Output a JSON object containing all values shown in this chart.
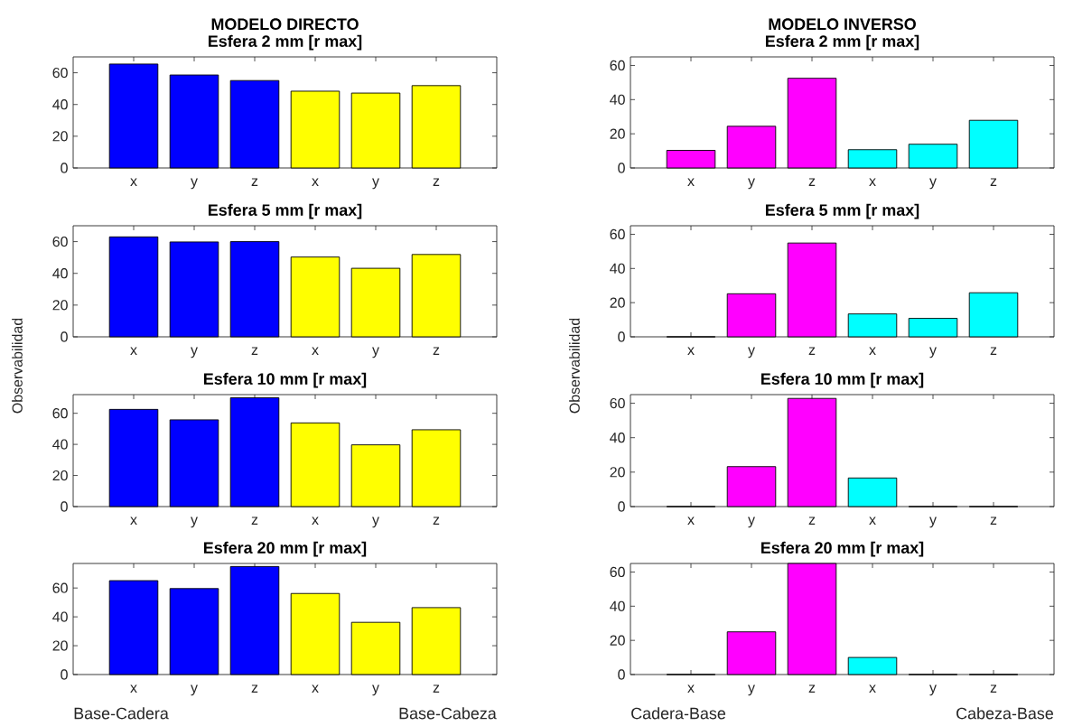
{
  "chart_data": [
    {
      "type": "bar",
      "title": "MODELO DIRECTO",
      "subtitle": "Esfera 2 mm [r max]",
      "categories": [
        "x",
        "y",
        "z",
        "x",
        "y",
        "z"
      ],
      "values": [
        65.5,
        58.6,
        55.1,
        48.4,
        47.2,
        51.9
      ],
      "colors": [
        "#0000ff",
        "#0000ff",
        "#0000ff",
        "#ffff00",
        "#ffff00",
        "#ffff00"
      ],
      "ylim": [
        0,
        70
      ],
      "yticks": [
        0,
        20,
        40,
        60
      ]
    },
    {
      "type": "bar",
      "title": "Esfera 5 mm [r max]",
      "ylabel": "Observabilidad",
      "categories": [
        "x",
        "y",
        "z",
        "x",
        "y",
        "z"
      ],
      "values": [
        63.0,
        59.8,
        60.0,
        50.3,
        43.2,
        51.9
      ],
      "colors": [
        "#0000ff",
        "#0000ff",
        "#0000ff",
        "#ffff00",
        "#ffff00",
        "#ffff00"
      ],
      "ylim": [
        0,
        70
      ],
      "yticks": [
        0,
        20,
        40,
        60
      ]
    },
    {
      "type": "bar",
      "title": "Esfera 10 mm [r max]",
      "categories": [
        "x",
        "y",
        "z",
        "x",
        "y",
        "z"
      ],
      "values": [
        62.5,
        55.8,
        70.0,
        53.8,
        39.7,
        49.4
      ],
      "colors": [
        "#0000ff",
        "#0000ff",
        "#0000ff",
        "#ffff00",
        "#ffff00",
        "#ffff00"
      ],
      "ylim": [
        0,
        72
      ],
      "yticks": [
        0,
        20,
        40,
        60
      ]
    },
    {
      "type": "bar",
      "title": "Esfera 20 mm [r max]",
      "categories": [
        "x",
        "y",
        "z",
        "x",
        "y",
        "z"
      ],
      "values": [
        65.1,
        59.6,
        74.9,
        56.2,
        36.2,
        46.4
      ],
      "colors": [
        "#0000ff",
        "#0000ff",
        "#0000ff",
        "#ffff00",
        "#ffff00",
        "#ffff00"
      ],
      "ylim": [
        0,
        77
      ],
      "yticks": [
        0,
        20,
        40,
        60
      ],
      "annotations": [
        "Base-Cadera",
        "Base-Cabeza"
      ]
    },
    {
      "type": "bar",
      "title": "MODELO INVERSO",
      "subtitle": "Esfera 2 mm [r max]",
      "categories": [
        "x",
        "y",
        "z",
        "x",
        "y",
        "z"
      ],
      "values": [
        10.3,
        24.4,
        52.5,
        10.7,
        13.9,
        27.9
      ],
      "colors": [
        "#ff00ff",
        "#ff00ff",
        "#ff00ff",
        "#00ffff",
        "#00ffff",
        "#00ffff"
      ],
      "ylim": [
        0,
        65
      ],
      "yticks": [
        0,
        20,
        40,
        60
      ]
    },
    {
      "type": "bar",
      "title": "Esfera 5 mm [r max]",
      "ylabel": "Observabilidad",
      "categories": [
        "x",
        "y",
        "z",
        "x",
        "y",
        "z"
      ],
      "values": [
        0,
        25.2,
        54.9,
        13.4,
        10.8,
        25.8
      ],
      "colors": [
        "#ff00ff",
        "#ff00ff",
        "#ff00ff",
        "#00ffff",
        "#00ffff",
        "#00ffff"
      ],
      "ylim": [
        0,
        65
      ],
      "yticks": [
        0,
        20,
        40,
        60
      ]
    },
    {
      "type": "bar",
      "title": "Esfera 10 mm [r max]",
      "categories": [
        "x",
        "y",
        "z",
        "x",
        "y",
        "z"
      ],
      "values": [
        0,
        23.2,
        62.8,
        16.6,
        0,
        0
      ],
      "colors": [
        "#ff00ff",
        "#ff00ff",
        "#ff00ff",
        "#00ffff",
        "#00ffff",
        "#00ffff"
      ],
      "ylim": [
        0,
        65
      ],
      "yticks": [
        0,
        20,
        40,
        60
      ]
    },
    {
      "type": "bar",
      "title": "Esfera 20 mm [r max]",
      "categories": [
        "x",
        "y",
        "z",
        "x",
        "y",
        "z"
      ],
      "values": [
        0,
        25.0,
        65.0,
        10.0,
        0,
        0
      ],
      "colors": [
        "#ff00ff",
        "#ff00ff",
        "#ff00ff",
        "#00ffff",
        "#00ffff",
        "#00ffff"
      ],
      "ylim": [
        0,
        65
      ],
      "yticks": [
        0,
        20,
        40,
        60
      ],
      "annotations": [
        "Cadera-Base",
        "Cabeza-Base"
      ]
    }
  ]
}
